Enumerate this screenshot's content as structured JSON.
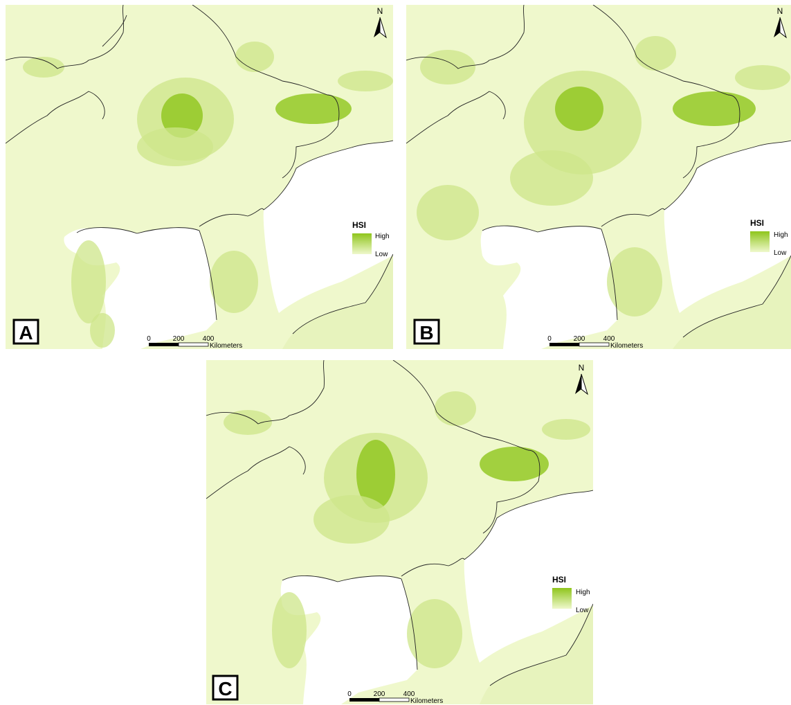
{
  "colors": {
    "low": "#eff8cc",
    "land": "#e7f3bd",
    "medium": "#cde68a",
    "high": "#8fc51c",
    "sea": "#ffffff",
    "border": "#222222"
  },
  "north_arrow": {
    "label": "N",
    "icon": "north-arrow-icon"
  },
  "legend": {
    "title": "HSI",
    "high_label": "High",
    "low_label": "Low"
  },
  "scale_bar": {
    "ticks": [
      "0",
      "200",
      "400"
    ],
    "unit": "Kilometers"
  },
  "panels": [
    {
      "label": "A"
    },
    {
      "label": "B"
    },
    {
      "label": "C"
    }
  ]
}
